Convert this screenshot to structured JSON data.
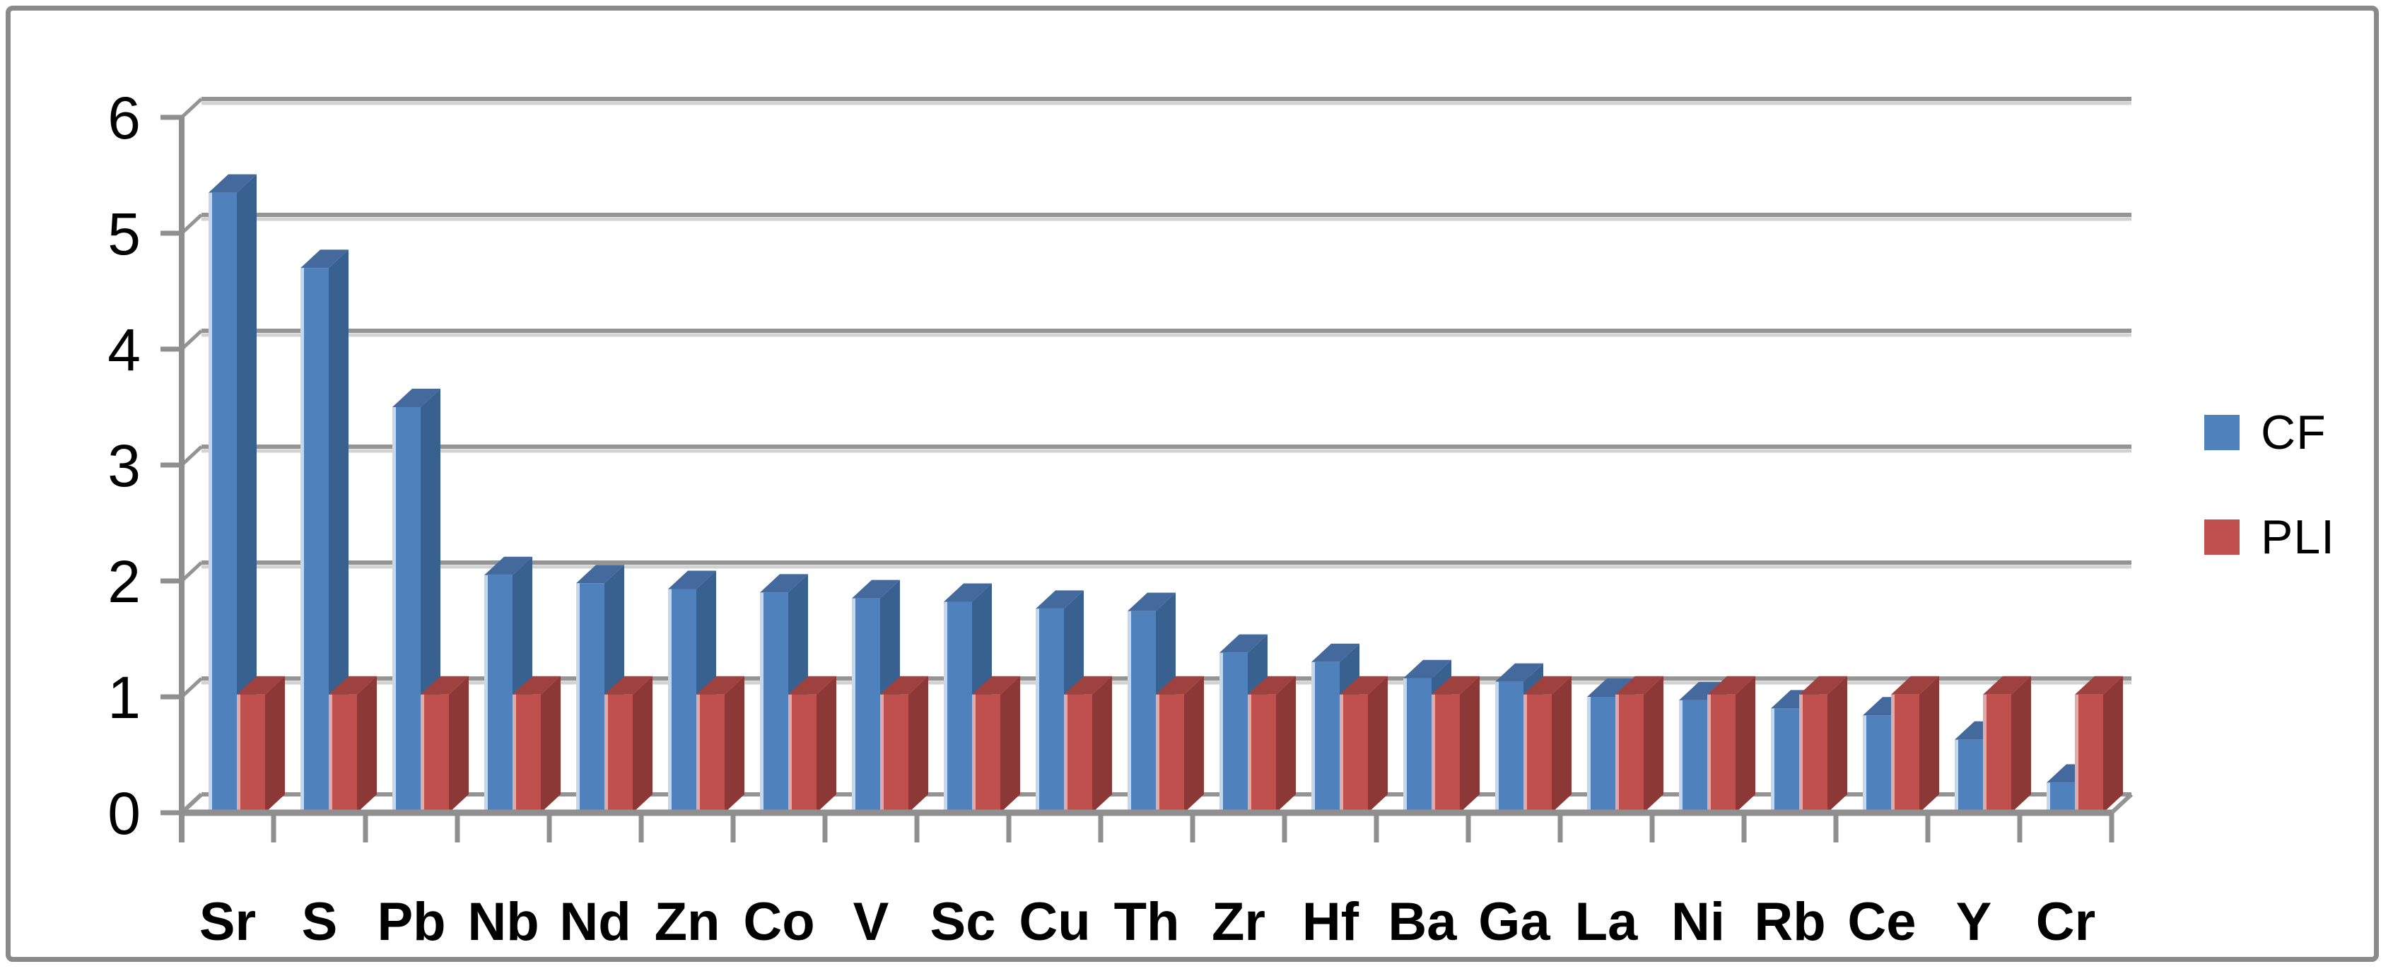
{
  "chart_data": {
    "type": "bar",
    "style": "3d-clustered-column",
    "title": "",
    "xlabel": "",
    "ylabel": "",
    "categories": [
      "Sr",
      "S",
      "Pb",
      "Nb",
      "Nd",
      "Zn",
      "Co",
      "V",
      "Sc",
      "Cu",
      "Th",
      "Zr",
      "Hf",
      "Ba",
      "Ga",
      "La",
      "Ni",
      "Rb",
      "Ce",
      "Y",
      "Cr"
    ],
    "series": [
      {
        "name": "CF",
        "color": "#4f81bd",
        "side_color": "#38618f",
        "top_color": "#44699c",
        "edge_highlight": "#c6d6eb",
        "values": [
          5.35,
          4.7,
          3.5,
          2.05,
          1.98,
          1.93,
          1.9,
          1.85,
          1.82,
          1.76,
          1.74,
          1.38,
          1.3,
          1.16,
          1.13,
          1.0,
          0.97,
          0.9,
          0.84,
          0.63,
          0.26
        ]
      },
      {
        "name": "PLI",
        "color": "#c0504d",
        "side_color": "#8c3836",
        "top_color": "#9f413e",
        "edge_highlight": "#ddaba9",
        "values": [
          1.02,
          1.02,
          1.02,
          1.02,
          1.02,
          1.02,
          1.02,
          1.02,
          1.02,
          1.02,
          1.02,
          1.02,
          1.02,
          1.02,
          1.02,
          1.02,
          1.02,
          1.02,
          1.02,
          1.02,
          1.02
        ]
      }
    ],
    "ylim": [
      0,
      6
    ],
    "y_ticks": [
      "0",
      "1",
      "2",
      "3",
      "4",
      "5",
      "6"
    ],
    "grid": true,
    "legend_position": "right"
  },
  "legend": {
    "items": [
      {
        "label": "CF",
        "color": "#4f81bd"
      },
      {
        "label": "PLI",
        "color": "#c0504d"
      }
    ]
  },
  "colors": {
    "axis": "#8f8f8f",
    "grid": "#949494",
    "grid_light": "#d2d2d2",
    "frame_border": "#8a8a8a",
    "text": "#000000",
    "background": "#ffffff"
  }
}
